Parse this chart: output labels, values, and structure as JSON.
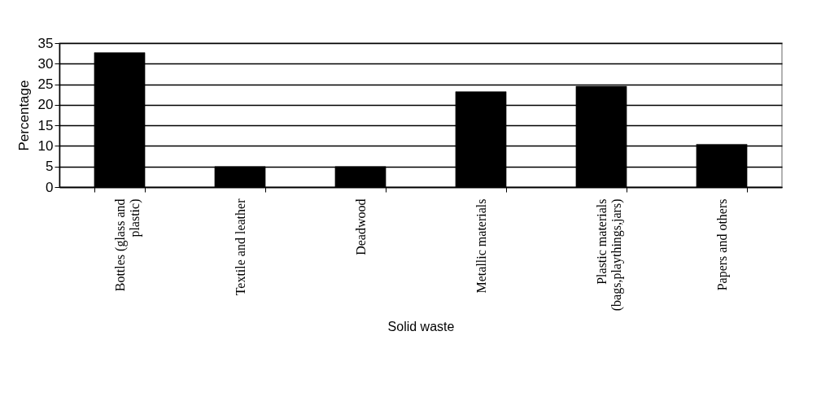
{
  "chart_data": {
    "type": "bar",
    "xlabel": "Solid waste",
    "ylabel": "Percentage",
    "categories": [
      "Bottles (glass and plastic)",
      "Textile and leather",
      "Deadwood",
      "Metallic materials",
      "Plastic materials (bags,playthings,jars)",
      "Papers and others"
    ],
    "values": [
      32.7,
      5,
      5,
      23.2,
      24.5,
      10.4
    ],
    "color": "#000000",
    "ylim": [
      0,
      35
    ],
    "yticks": [
      0,
      5,
      10,
      15,
      20,
      25,
      30,
      35
    ],
    "grid": "y"
  }
}
